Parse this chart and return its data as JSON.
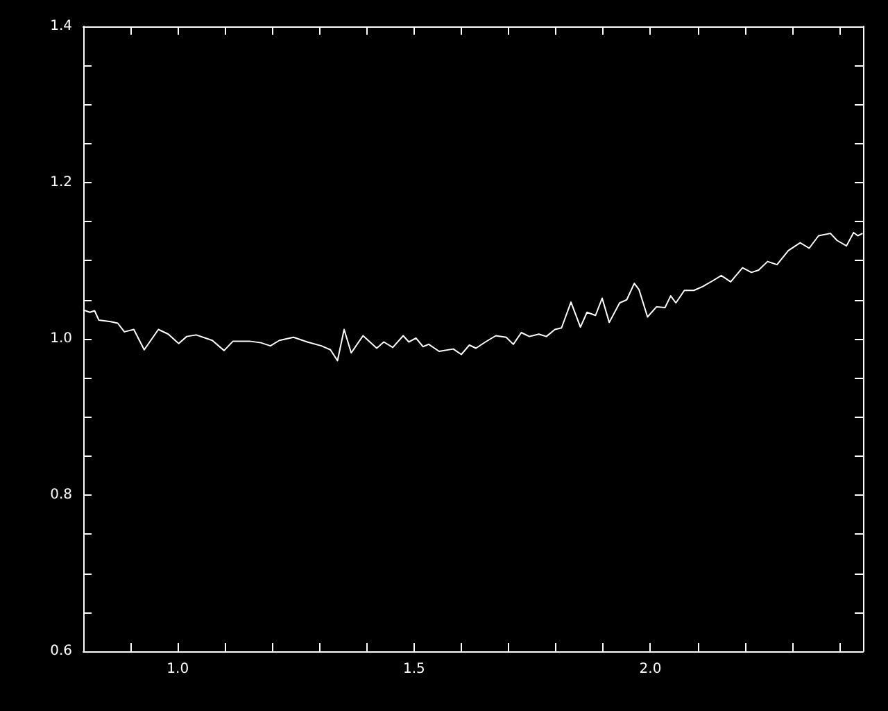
{
  "chart_data": {
    "type": "line",
    "x": [
      0.8,
      0.814,
      0.824,
      0.833,
      0.858,
      0.873,
      0.887,
      0.907,
      0.929,
      0.959,
      0.98,
      1.002,
      1.019,
      1.039,
      1.073,
      1.098,
      1.117,
      1.152,
      1.176,
      1.196,
      1.215,
      1.245,
      1.274,
      1.304,
      1.323,
      1.338,
      1.352,
      1.367,
      1.392,
      1.421,
      1.436,
      1.455,
      1.477,
      1.489,
      1.504,
      1.519,
      1.531,
      1.553,
      1.583,
      1.6,
      1.617,
      1.631,
      1.651,
      1.673,
      1.695,
      1.71,
      1.727,
      1.744,
      1.764,
      1.78,
      1.798,
      1.812,
      1.832,
      1.852,
      1.866,
      1.884,
      1.898,
      1.913,
      1.935,
      1.95,
      1.966,
      1.976,
      1.994,
      2.013,
      2.031,
      2.043,
      2.054,
      2.072,
      2.092,
      2.111,
      2.131,
      2.15,
      2.17,
      2.195,
      2.214,
      2.229,
      2.248,
      2.268,
      2.292,
      2.317,
      2.336,
      2.356,
      2.381,
      2.395,
      2.415,
      2.43,
      2.439,
      2.449
    ],
    "series": [
      {
        "color": "#ffffff",
        "values": [
          1.037,
          1.034,
          1.036,
          1.024,
          1.022,
          1.02,
          1.009,
          1.012,
          0.986,
          1.012,
          1.006,
          0.994,
          1.003,
          1.005,
          0.998,
          0.985,
          0.997,
          0.997,
          0.995,
          0.991,
          0.998,
          1.002,
          0.996,
          0.991,
          0.986,
          0.972,
          1.012,
          0.982,
          1.004,
          0.988,
          0.996,
          0.989,
          1.004,
          0.996,
          1.001,
          0.99,
          0.993,
          0.984,
          0.987,
          0.98,
          0.992,
          0.988,
          0.996,
          1.004,
          1.002,
          0.993,
          1.008,
          1.003,
          1.006,
          1.003,
          1.012,
          1.014,
          1.047,
          1.015,
          1.034,
          1.03,
          1.052,
          1.021,
          1.046,
          1.05,
          1.071,
          1.063,
          1.028,
          1.041,
          1.04,
          1.055,
          1.046,
          1.062,
          1.062,
          1.067,
          1.074,
          1.081,
          1.073,
          1.091,
          1.085,
          1.088,
          1.099,
          1.095,
          1.113,
          1.123,
          1.116,
          1.132,
          1.135,
          1.126,
          1.119,
          1.136,
          1.132,
          1.135
        ]
      }
    ],
    "xlim": [
      0.8,
      2.45
    ],
    "xticks": [
      {
        "value": 0.9,
        "label": null
      },
      {
        "value": 1,
        "label": "1.0"
      },
      {
        "value": 1.1,
        "label": null
      },
      {
        "value": 1.2,
        "label": null
      },
      {
        "value": 1.3,
        "label": null
      },
      {
        "value": 1.4,
        "label": null
      },
      1.5,
      {
        "value": 1.6,
        "label": null
      },
      {
        "value": 1.7,
        "label": null
      },
      {
        "value": 1.8,
        "label": null
      },
      {
        "value": 1.9,
        "label": null
      },
      {
        "value": 2,
        "label": "2.0"
      },
      {
        "value": 2.1,
        "label": null
      },
      {
        "value": 2.2,
        "label": null
      },
      {
        "value": 2.3,
        "label": null
      },
      {
        "value": 2.4,
        "label": null
      }
    ],
    "ylim": [
      0.6,
      1.4
    ],
    "yticks": [
      0.6,
      {
        "value": 0.65,
        "label": null
      },
      {
        "value": 0.7,
        "label": null
      },
      {
        "value": 0.75,
        "label": null
      },
      0.8,
      {
        "value": 0.85,
        "label": null
      },
      {
        "value": 0.9,
        "label": null
      },
      {
        "value": 0.95,
        "label": null
      },
      {
        "value": 1,
        "label": "1.0"
      },
      {
        "value": 1.05,
        "label": null
      },
      {
        "value": 1.1,
        "label": null
      },
      {
        "value": 1.15,
        "label": null
      },
      1.2,
      {
        "value": 1.25,
        "label": null
      },
      {
        "value": 1.3,
        "label": null
      },
      {
        "value": 1.35,
        "label": null
      },
      1.4
    ],
    "grid": false,
    "marker": "none",
    "line_style": "solid"
  }
}
